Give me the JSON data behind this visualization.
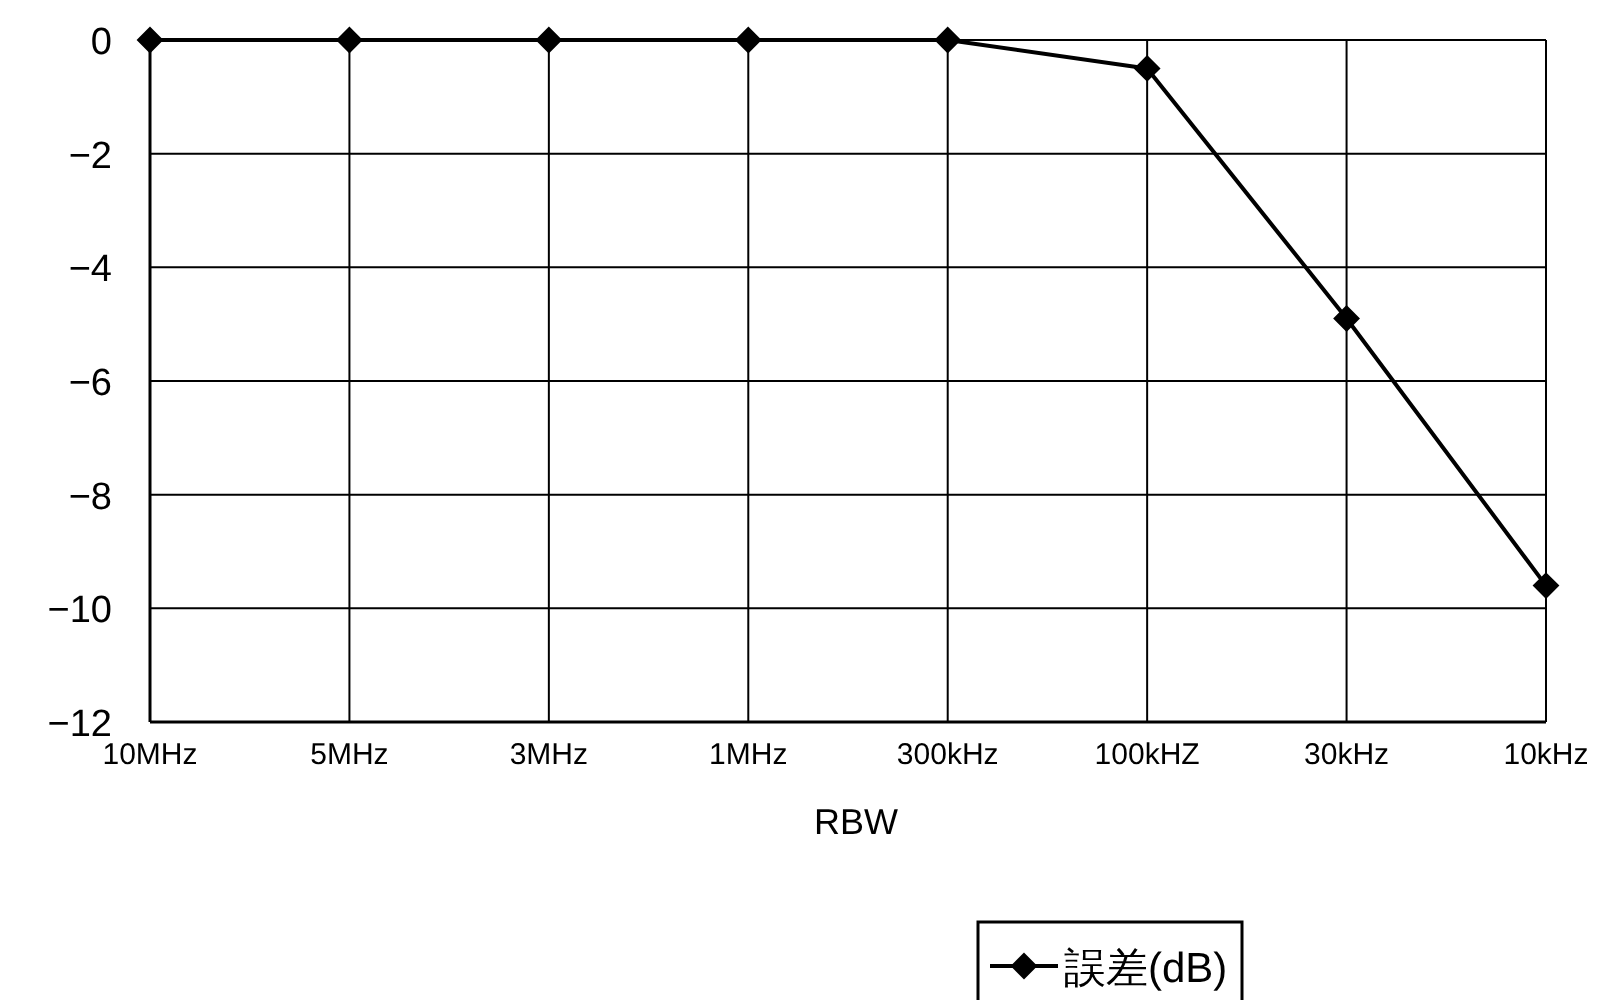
{
  "chart_data": {
    "type": "line",
    "xlabel": "RBW",
    "categories": [
      "10MHz",
      "5MHz",
      "3MHz",
      "1MHz",
      "300kHz",
      "100kHZ",
      "30kHz",
      "10kHz"
    ],
    "series": [
      {
        "name": "誤差(dB)",
        "color": "#000000",
        "values": [
          0,
          0,
          0,
          0,
          0,
          -0.5,
          -4.9,
          -9.6
        ]
      }
    ],
    "ylim": [
      -12,
      0
    ],
    "yticks": [
      -12,
      -10,
      -8,
      -6,
      -4,
      -2,
      0
    ],
    "grid": true,
    "legend": "bottom",
    "marker": "diamond",
    "line_style": "solid"
  }
}
